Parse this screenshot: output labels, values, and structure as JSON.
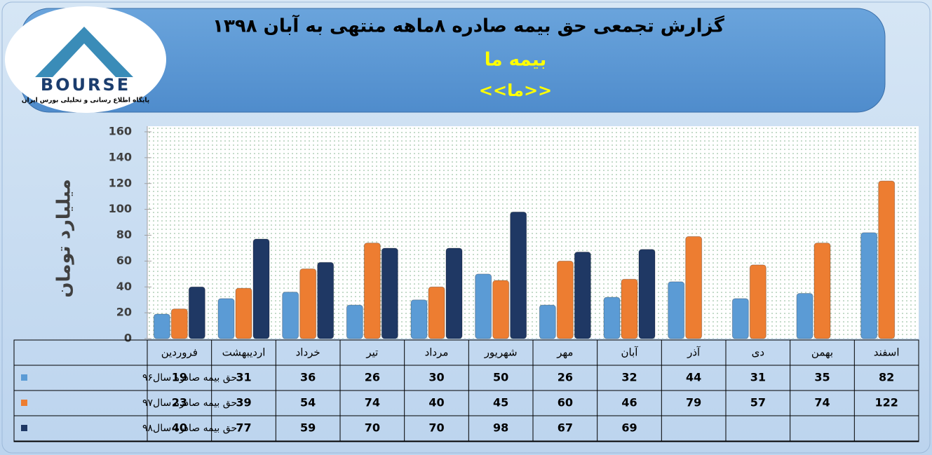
{
  "logo": {
    "name": "BOURSE",
    "tagline": "پایگاه اطلاع رسانی و تحلیلی بورس ایران"
  },
  "chart_data": {
    "type": "bar",
    "title": "گزارش تجمعی حق بیمه صادره ۸ماهه منتهی به آبان ۱۳۹۸",
    "subtitle": "بیمه ما",
    "subtitle2": "<<ما>>",
    "y_label": "میلیارد تومان",
    "categories": [
      "فروردین",
      "اردیبهشت",
      "خرداد",
      "تیر",
      "مرداد",
      "شهریور",
      "مهر",
      "آبان",
      "آذر",
      "دی",
      "بهمن",
      "اسفند"
    ],
    "series": [
      {
        "name": "حق بیمه صادره سال۹۶",
        "color": "#5b9bd5",
        "values": [
          19,
          31,
          36,
          26,
          30,
          50,
          26,
          32,
          44,
          31,
          35,
          82
        ]
      },
      {
        "name": "حق بیمه صادره سال۹۷",
        "color": "#ed7d31",
        "values": [
          23,
          39,
          54,
          74,
          40,
          45,
          60,
          46,
          79,
          57,
          74,
          122
        ]
      },
      {
        "name": "حق بیمه صادره سال۹۸",
        "color": "#1f3864",
        "values": [
          40,
          77,
          59,
          70,
          70,
          98,
          67,
          69,
          null,
          null,
          null,
          null
        ]
      }
    ],
    "ylim": [
      0,
      160
    ],
    "yticks": [
      0,
      20,
      40,
      60,
      80,
      100,
      120,
      140,
      160
    ],
    "grid": true
  }
}
